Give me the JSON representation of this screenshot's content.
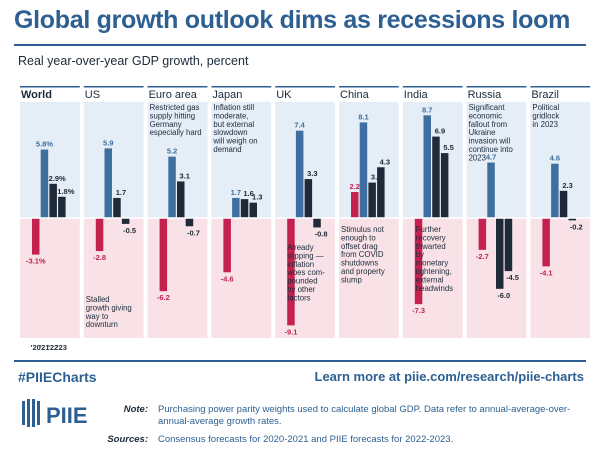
{
  "title": "Global growth outlook dims as recessions loom",
  "subtitle": "Real year-over-year GDP growth, percent",
  "footer": {
    "hashtag": "#PIIECharts",
    "learn_more": "Learn more at piie.com/research/piie-charts",
    "logo_text": "PIIE",
    "note_label": "Note:",
    "note_text": "Purchasing power parity weights used to calculate global GDP. Data refer to annual-average-over-annual-average growth rates.",
    "sources_label": "Sources:",
    "sources_text": "Consensus forecasts for 2020-2021 and PIIE forecasts for 2022-2023."
  },
  "colors": {
    "brand": "#2d5f92",
    "y2020": "#c4214f",
    "y2021": "#3f6f9f",
    "y2022": "#1e2a38",
    "y2023": "#1e2a38",
    "panel_pos": "#e5edf7",
    "panel_neg": "#f9e2e7"
  },
  "chart_data": {
    "type": "bar",
    "title": "Global growth outlook dims as recessions loom",
    "ylabel": "Real year-over-year GDP growth, percent",
    "ylim": [
      -9.5,
      10
    ],
    "year_labels": [
      "'20",
      "'21",
      "'22",
      "'23"
    ],
    "series_names": [
      "2020",
      "2021",
      "2022",
      "2023"
    ],
    "panels": [
      {
        "name": "World",
        "values": [
          -3.1,
          5.8,
          2.9,
          1.8
        ],
        "labels": [
          "-3.1%",
          "5.8%",
          "2.9%",
          "1.8%"
        ],
        "annotation": [],
        "annotation_pos": "top"
      },
      {
        "name": "US",
        "values": [
          -2.8,
          5.9,
          1.7,
          -0.5
        ],
        "labels": [
          "-2.8",
          "5.9",
          "1.7",
          "-0.5"
        ],
        "annotation": [
          "Stalled",
          "growth giving",
          "way to",
          "downturn"
        ],
        "annotation_pos": "bottom"
      },
      {
        "name": "Euro area",
        "values": [
          -6.2,
          5.2,
          3.1,
          -0.7
        ],
        "labels": [
          "-6.2",
          "5.2",
          "3.1",
          "-0.7"
        ],
        "annotation": [
          "Restricted gas",
          "supply hitting",
          "Germany",
          "especially hard"
        ],
        "annotation_pos": "top"
      },
      {
        "name": "Japan",
        "values": [
          -4.6,
          1.7,
          1.6,
          1.3
        ],
        "labels": [
          "-4.6",
          "1.7",
          "1.6",
          "1.3"
        ],
        "annotation": [
          "Inflation still",
          "moderate,",
          "but external",
          "slowdown",
          "will weigh on",
          "demand"
        ],
        "annotation_pos": "top"
      },
      {
        "name": "UK",
        "values": [
          -9.1,
          7.4,
          3.3,
          -0.8
        ],
        "labels": [
          "-9.1",
          "7.4",
          "3.3",
          "-0.8"
        ],
        "annotation": [
          "Already",
          "slipping —",
          "inflation",
          "woes com-",
          "pounded",
          "by other",
          "factors"
        ],
        "annotation_pos": "bottom"
      },
      {
        "name": "China",
        "values": [
          2.2,
          8.1,
          3.0,
          4.3
        ],
        "labels": [
          "2.2",
          "8.1",
          "3.0",
          "4.3"
        ],
        "annotation": [
          "Stimulus not",
          "enough to",
          "offset drag",
          "from COVID",
          "shutdowns",
          "and property",
          "slump"
        ],
        "annotation_pos": "bottom"
      },
      {
        "name": "India",
        "values": [
          -7.3,
          8.7,
          6.9,
          5.5
        ],
        "labels": [
          "-7.3",
          "8.7",
          "6.9",
          "5.5"
        ],
        "annotation": [
          "Further",
          "recovery",
          "thwarted",
          "by",
          "monetary",
          "tightening,",
          "external",
          "headwinds"
        ],
        "annotation_pos": "bottom"
      },
      {
        "name": "Russia",
        "values": [
          -2.7,
          4.7,
          -6.0,
          -4.5
        ],
        "labels": [
          "-2.7",
          "4.7",
          "-6.0",
          "-4.5"
        ],
        "annotation": [
          "Significant",
          "economic",
          "fallout from",
          "Ukraine",
          "invasion will",
          "continue into",
          "2023"
        ],
        "annotation_pos": "top"
      },
      {
        "name": "Brazil",
        "values": [
          -4.1,
          4.6,
          2.3,
          -0.2
        ],
        "labels": [
          "-4.1",
          "4.6",
          "2.3",
          "-0.2"
        ],
        "annotation": [
          "Political",
          "gridlock",
          "in 2023"
        ],
        "annotation_pos": "top"
      }
    ]
  }
}
